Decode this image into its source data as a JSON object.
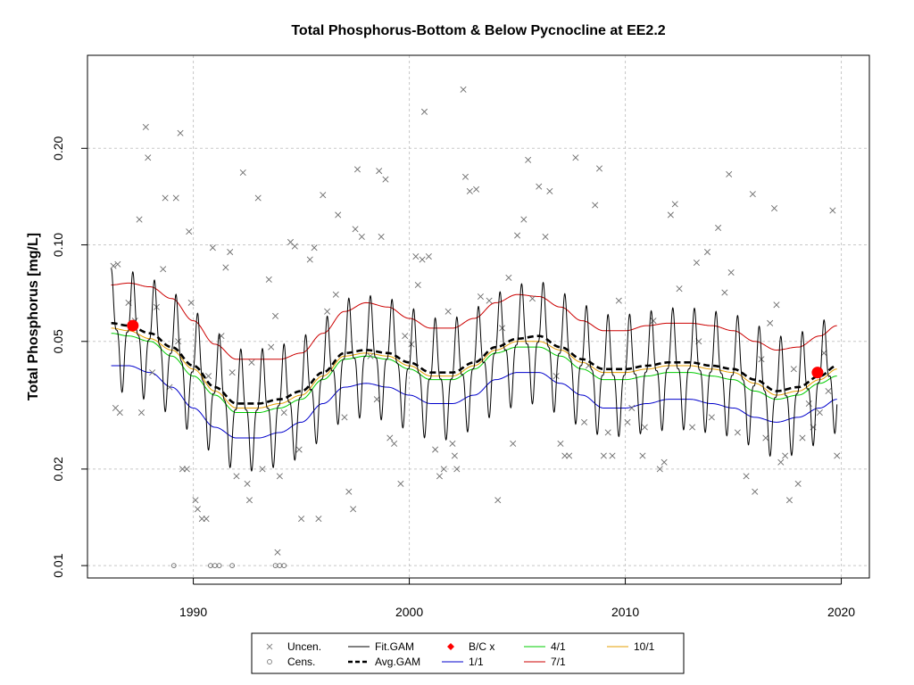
{
  "chart_data": {
    "type": "scatter",
    "title": "Total Phosphorus-Bottom & Below Pycnocline at EE2.2",
    "xlabel": "",
    "ylabel": "Total Phosphorus [mg/L]",
    "xlim": [
      1985.1,
      2021.3
    ],
    "ylim": [
      0.00915,
      0.39
    ],
    "y_scale": "log",
    "grid": true,
    "x_ticks": [
      1990,
      2000,
      2010,
      2020
    ],
    "y_ticks": [
      0.01,
      0.02,
      0.05,
      0.1,
      0.2
    ],
    "y_tick_labels": [
      "0.01",
      "0.02",
      "0.05",
      "0.10",
      "0.20"
    ],
    "x_tick_labels": [
      "1990",
      "2000",
      "2010",
      "2020"
    ],
    "legend_position": "bottom",
    "legend": [
      {
        "label": "Uncen.",
        "marker": "x",
        "color": "#888888"
      },
      {
        "label": "Fit.GAM",
        "line": "solid",
        "color": "#000000"
      },
      {
        "label": "B/C x",
        "marker": "diamond",
        "color": "#ff0000"
      },
      {
        "label": "4/1",
        "line": "solid",
        "color": "#00cc00"
      },
      {
        "label": "10/1",
        "line": "solid",
        "color": "#e69f00"
      },
      {
        "label": "Cens.",
        "marker": "circle-open",
        "color": "#888888"
      },
      {
        "label": "Avg.GAM",
        "line": "dashed",
        "color": "#000000"
      },
      {
        "label": "1/1",
        "line": "solid",
        "color": "#0000cc"
      },
      {
        "label": "7/1",
        "line": "solid",
        "color": "#cc0000"
      }
    ],
    "series": [
      {
        "name": "Avg.GAM",
        "x": [
          1986.2,
          1987,
          1988,
          1989,
          1990,
          1991,
          1992,
          1993,
          1994,
          1995,
          1996,
          1997,
          1998,
          1999,
          2000,
          2001,
          2002,
          2003,
          2004,
          2005,
          2006,
          2007,
          2008,
          2009,
          2010,
          2011,
          2012,
          2013,
          2014,
          2015,
          2016,
          2017,
          2018,
          2019,
          2019.8
        ],
        "y": [
          0.057,
          0.056,
          0.053,
          0.048,
          0.042,
          0.036,
          0.032,
          0.032,
          0.033,
          0.035,
          0.04,
          0.046,
          0.047,
          0.046,
          0.043,
          0.04,
          0.04,
          0.043,
          0.048,
          0.051,
          0.052,
          0.048,
          0.044,
          0.041,
          0.041,
          0.042,
          0.043,
          0.043,
          0.042,
          0.041,
          0.038,
          0.035,
          0.036,
          0.039,
          0.042
        ]
      },
      {
        "name": "1/1",
        "x": [
          1986.2,
          1987,
          1988,
          1989,
          1990,
          1991,
          1992,
          1993,
          1994,
          1995,
          1996,
          1997,
          1998,
          1999,
          2000,
          2001,
          2002,
          2003,
          2004,
          2005,
          2006,
          2007,
          2008,
          2009,
          2010,
          2011,
          2012,
          2013,
          2014,
          2015,
          2016,
          2017,
          2018,
          2019,
          2019.8
        ],
        "y": [
          0.042,
          0.042,
          0.04,
          0.036,
          0.031,
          0.027,
          0.025,
          0.025,
          0.026,
          0.028,
          0.032,
          0.036,
          0.037,
          0.036,
          0.034,
          0.032,
          0.032,
          0.034,
          0.038,
          0.04,
          0.04,
          0.037,
          0.034,
          0.031,
          0.031,
          0.032,
          0.033,
          0.033,
          0.032,
          0.031,
          0.029,
          0.028,
          0.029,
          0.031,
          0.033
        ]
      },
      {
        "name": "4/1",
        "x": [
          1986.2,
          1987,
          1988,
          1989,
          1990,
          1991,
          1992,
          1993,
          1994,
          1995,
          1996,
          1997,
          1998,
          1999,
          2000,
          2001,
          2002,
          2003,
          2004,
          2005,
          2006,
          2007,
          2008,
          2009,
          2010,
          2011,
          2012,
          2013,
          2014,
          2015,
          2016,
          2017,
          2018,
          2019,
          2019.8
        ],
        "y": [
          0.053,
          0.052,
          0.05,
          0.045,
          0.039,
          0.034,
          0.03,
          0.03,
          0.031,
          0.033,
          0.038,
          0.044,
          0.045,
          0.044,
          0.041,
          0.038,
          0.038,
          0.041,
          0.046,
          0.048,
          0.048,
          0.045,
          0.041,
          0.038,
          0.038,
          0.039,
          0.04,
          0.04,
          0.039,
          0.038,
          0.035,
          0.033,
          0.034,
          0.037,
          0.039
        ]
      },
      {
        "name": "7/1",
        "x": [
          1986.2,
          1987,
          1988,
          1989,
          1990,
          1991,
          1992,
          1993,
          1994,
          1995,
          1996,
          1997,
          1998,
          1999,
          2000,
          2001,
          2002,
          2003,
          2004,
          2005,
          2006,
          2007,
          2008,
          2009,
          2010,
          2011,
          2012,
          2013,
          2014,
          2015,
          2016,
          2017,
          2018,
          2019,
          2019.8
        ],
        "y": [
          0.075,
          0.076,
          0.074,
          0.068,
          0.058,
          0.049,
          0.044,
          0.044,
          0.044,
          0.046,
          0.053,
          0.062,
          0.066,
          0.064,
          0.059,
          0.055,
          0.055,
          0.059,
          0.066,
          0.07,
          0.069,
          0.064,
          0.058,
          0.054,
          0.054,
          0.056,
          0.057,
          0.057,
          0.056,
          0.054,
          0.05,
          0.047,
          0.048,
          0.052,
          0.056
        ]
      },
      {
        "name": "10/1",
        "x": [
          1986.2,
          1987,
          1988,
          1989,
          1990,
          1991,
          1992,
          1993,
          1994,
          1995,
          1996,
          1997,
          1998,
          1999,
          2000,
          2001,
          2002,
          2003,
          2004,
          2005,
          2006,
          2007,
          2008,
          2009,
          2010,
          2011,
          2012,
          2013,
          2014,
          2015,
          2016,
          2017,
          2018,
          2019,
          2019.8
        ],
        "y": [
          0.055,
          0.054,
          0.051,
          0.047,
          0.041,
          0.035,
          0.031,
          0.031,
          0.032,
          0.034,
          0.039,
          0.045,
          0.046,
          0.045,
          0.042,
          0.039,
          0.039,
          0.042,
          0.047,
          0.05,
          0.05,
          0.047,
          0.043,
          0.04,
          0.04,
          0.041,
          0.042,
          0.042,
          0.041,
          0.04,
          0.037,
          0.034,
          0.035,
          0.038,
          0.041
        ]
      }
    ],
    "fit_gam": {
      "name": "Fit.GAM",
      "x_start": 1986.2,
      "x_end": 2019.8,
      "seasonal_amplitude_log10": 0.19,
      "period_years": 1
    },
    "bc_points": [
      {
        "x": 1987.2,
        "y": 0.056
      },
      {
        "x": 2018.9,
        "y": 0.04
      }
    ],
    "uncensored_points": [
      [
        1986.3,
        0.086
      ],
      [
        1986.5,
        0.087
      ],
      [
        1986.4,
        0.031
      ],
      [
        1986.6,
        0.03
      ],
      [
        1987.0,
        0.066
      ],
      [
        1987.3,
        0.058
      ],
      [
        1987.5,
        0.12
      ],
      [
        1987.6,
        0.03
      ],
      [
        1987.8,
        0.233
      ],
      [
        1987.9,
        0.187
      ],
      [
        1988.1,
        0.04
      ],
      [
        1988.3,
        0.064
      ],
      [
        1988.6,
        0.084
      ],
      [
        1988.7,
        0.14
      ],
      [
        1988.9,
        0.036
      ],
      [
        1989.2,
        0.14
      ],
      [
        1989.3,
        0.05
      ],
      [
        1989.4,
        0.223
      ],
      [
        1989.5,
        0.02
      ],
      [
        1989.7,
        0.02
      ],
      [
        1989.8,
        0.11
      ],
      [
        1989.9,
        0.066
      ],
      [
        1990.1,
        0.016
      ],
      [
        1990.2,
        0.015
      ],
      [
        1990.4,
        0.014
      ],
      [
        1990.6,
        0.014
      ],
      [
        1990.7,
        0.039
      ],
      [
        1990.9,
        0.098
      ],
      [
        1991.3,
        0.052
      ],
      [
        1991.5,
        0.085
      ],
      [
        1991.7,
        0.095
      ],
      [
        1991.8,
        0.04
      ],
      [
        1992.0,
        0.019
      ],
      [
        1992.3,
        0.168
      ],
      [
        1992.5,
        0.018
      ],
      [
        1992.6,
        0.016
      ],
      [
        1992.7,
        0.043
      ],
      [
        1993.0,
        0.14
      ],
      [
        1993.2,
        0.02
      ],
      [
        1993.5,
        0.078
      ],
      [
        1993.6,
        0.048
      ],
      [
        1993.8,
        0.06
      ],
      [
        1993.9,
        0.011
      ],
      [
        1994.0,
        0.019
      ],
      [
        1994.2,
        0.03
      ],
      [
        1994.5,
        0.102
      ],
      [
        1994.7,
        0.099
      ],
      [
        1994.9,
        0.023
      ],
      [
        1995.0,
        0.014
      ],
      [
        1995.4,
        0.09
      ],
      [
        1995.6,
        0.098
      ],
      [
        1995.8,
        0.014
      ],
      [
        1996.0,
        0.143
      ],
      [
        1996.2,
        0.062
      ],
      [
        1996.6,
        0.07
      ],
      [
        1996.7,
        0.124
      ],
      [
        1997.0,
        0.029
      ],
      [
        1997.2,
        0.017
      ],
      [
        1997.4,
        0.015
      ],
      [
        1997.5,
        0.112
      ],
      [
        1997.6,
        0.172
      ],
      [
        1997.8,
        0.106
      ],
      [
        1998.2,
        0.045
      ],
      [
        1998.5,
        0.033
      ],
      [
        1998.6,
        0.17
      ],
      [
        1998.7,
        0.106
      ],
      [
        1998.9,
        0.16
      ],
      [
        1999.1,
        0.025
      ],
      [
        1999.3,
        0.024
      ],
      [
        1999.6,
        0.018
      ],
      [
        1999.8,
        0.052
      ],
      [
        2000.1,
        0.049
      ],
      [
        2000.3,
        0.092
      ],
      [
        2000.4,
        0.075
      ],
      [
        2000.6,
        0.09
      ],
      [
        2000.7,
        0.26
      ],
      [
        2000.9,
        0.092
      ],
      [
        2001.2,
        0.023
      ],
      [
        2001.4,
        0.019
      ],
      [
        2001.6,
        0.02
      ],
      [
        2001.8,
        0.062
      ],
      [
        2002.0,
        0.024
      ],
      [
        2002.1,
        0.022
      ],
      [
        2002.2,
        0.02
      ],
      [
        2002.5,
        0.305
      ],
      [
        2002.6,
        0.163
      ],
      [
        2002.8,
        0.147
      ],
      [
        2003.1,
        0.149
      ],
      [
        2003.3,
        0.069
      ],
      [
        2003.7,
        0.067
      ],
      [
        2004.1,
        0.016
      ],
      [
        2004.3,
        0.055
      ],
      [
        2004.6,
        0.079
      ],
      [
        2004.8,
        0.024
      ],
      [
        2005.0,
        0.107
      ],
      [
        2005.3,
        0.12
      ],
      [
        2005.5,
        0.184
      ],
      [
        2005.7,
        0.068
      ],
      [
        2006.0,
        0.152
      ],
      [
        2006.3,
        0.106
      ],
      [
        2006.5,
        0.147
      ],
      [
        2006.8,
        0.039
      ],
      [
        2007.0,
        0.024
      ],
      [
        2007.2,
        0.022
      ],
      [
        2007.4,
        0.022
      ],
      [
        2007.7,
        0.187
      ],
      [
        2008.1,
        0.028
      ],
      [
        2008.3,
        0.042
      ],
      [
        2008.6,
        0.133
      ],
      [
        2008.8,
        0.173
      ],
      [
        2009.0,
        0.022
      ],
      [
        2009.2,
        0.026
      ],
      [
        2009.4,
        0.022
      ],
      [
        2009.7,
        0.067
      ],
      [
        2010.1,
        0.028
      ],
      [
        2010.3,
        0.031
      ],
      [
        2010.8,
        0.022
      ],
      [
        2010.9,
        0.027
      ],
      [
        2011.3,
        0.058
      ],
      [
        2011.6,
        0.02
      ],
      [
        2011.8,
        0.021
      ],
      [
        2012.1,
        0.124
      ],
      [
        2012.3,
        0.134
      ],
      [
        2012.5,
        0.073
      ],
      [
        2013.1,
        0.027
      ],
      [
        2013.3,
        0.088
      ],
      [
        2013.4,
        0.05
      ],
      [
        2013.8,
        0.095
      ],
      [
        2014.0,
        0.029
      ],
      [
        2014.3,
        0.113
      ],
      [
        2014.6,
        0.071
      ],
      [
        2014.8,
        0.166
      ],
      [
        2014.9,
        0.082
      ],
      [
        2015.2,
        0.026
      ],
      [
        2015.6,
        0.019
      ],
      [
        2015.9,
        0.144
      ],
      [
        2016.0,
        0.017
      ],
      [
        2016.3,
        0.044
      ],
      [
        2016.5,
        0.025
      ],
      [
        2016.7,
        0.057
      ],
      [
        2016.9,
        0.13
      ],
      [
        2017.0,
        0.065
      ],
      [
        2017.2,
        0.021
      ],
      [
        2017.4,
        0.022
      ],
      [
        2017.6,
        0.016
      ],
      [
        2017.8,
        0.041
      ],
      [
        2018.0,
        0.018
      ],
      [
        2018.2,
        0.025
      ],
      [
        2018.5,
        0.032
      ],
      [
        2018.7,
        0.027
      ],
      [
        2019.0,
        0.03
      ],
      [
        2019.2,
        0.046
      ],
      [
        2019.4,
        0.035
      ],
      [
        2019.6,
        0.128
      ],
      [
        2019.8,
        0.022
      ]
    ],
    "censored_points": [
      [
        1989.1,
        0.01
      ],
      [
        1990.8,
        0.01
      ],
      [
        1991.0,
        0.01
      ],
      [
        1991.2,
        0.01
      ],
      [
        1991.8,
        0.01
      ],
      [
        1993.8,
        0.01
      ],
      [
        1994.0,
        0.01
      ],
      [
        1994.2,
        0.01
      ]
    ]
  }
}
